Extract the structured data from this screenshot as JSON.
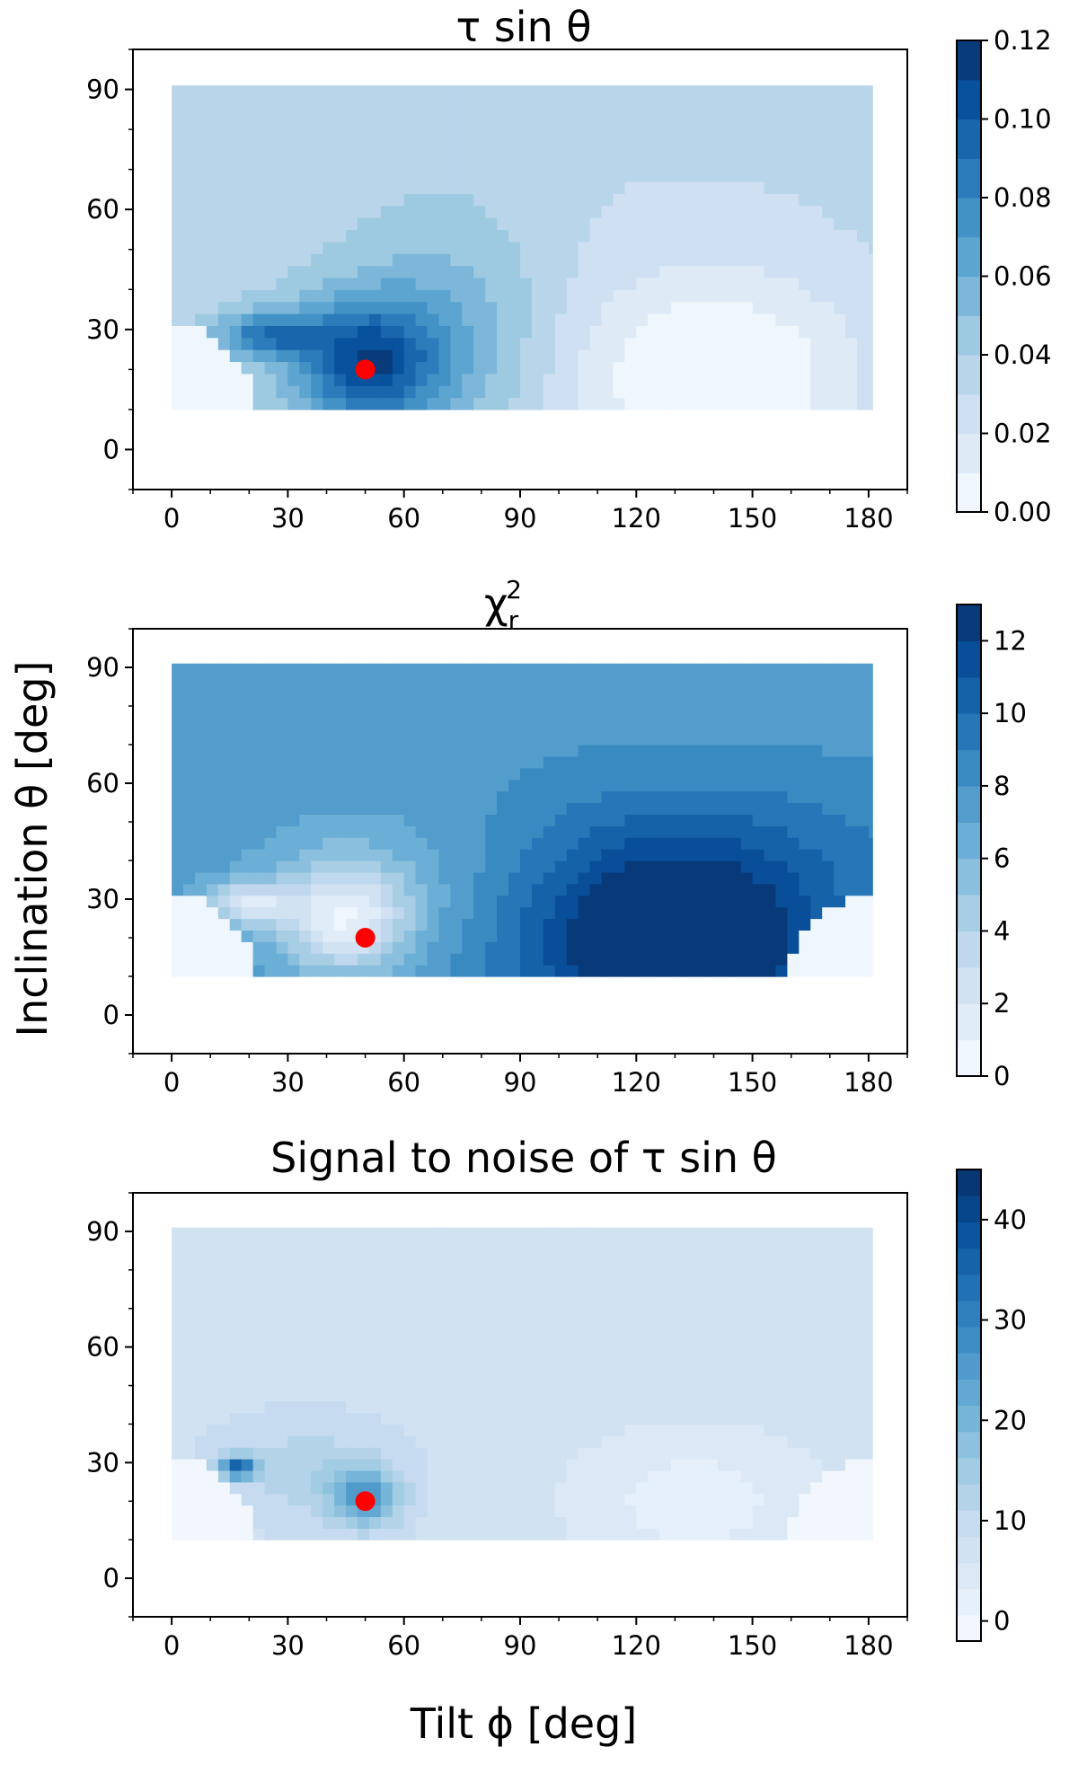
{
  "figure": {
    "xlabel": "Tilt ϕ [deg]",
    "ylabel": "Inclination θ [deg]"
  },
  "chart_data": [
    {
      "type": "heatmap",
      "title": "τ sin θ",
      "x_ticks": [
        "0",
        "30",
        "60",
        "90",
        "120",
        "150",
        "180"
      ],
      "y_ticks": [
        "0",
        "30",
        "60",
        "90"
      ],
      "xlim": [
        -10,
        190
      ],
      "ylim": [
        -10,
        100
      ],
      "grid_extent": {
        "x": [
          0,
          181
        ],
        "y": [
          10,
          91
        ]
      },
      "colorbar": {
        "min": 0.0,
        "max": 0.12,
        "ticks": [
          "0.00",
          "0.02",
          "0.04",
          "0.06",
          "0.08",
          "0.10",
          "0.12"
        ],
        "levels": 12
      },
      "background_value": 0.0,
      "features": [
        {
          "kind": "base",
          "value": 0.036
        },
        {
          "kind": "blob",
          "x": 50,
          "y": 22,
          "sx": 13,
          "sy": 11,
          "amp": 0.068
        },
        {
          "kind": "blob",
          "x": 25,
          "y": 29,
          "sx": 9,
          "sy": 4,
          "amp": 0.05
        },
        {
          "kind": "blob",
          "x": 72,
          "y": 30,
          "sx": 18,
          "sy": 22,
          "amp": 0.022
        },
        {
          "kind": "blob",
          "x": 140,
          "y": 18,
          "sx": 28,
          "sy": 18,
          "amp": -0.04
        },
        {
          "kind": "blob",
          "x": 130,
          "y": 58,
          "sx": 45,
          "sy": 18,
          "amp": -0.006
        }
      ],
      "cutouts": [
        {
          "x": 0,
          "y": 10,
          "r": 21
        }
      ],
      "marker": {
        "x": 50,
        "y": 20,
        "color": "#ff0000"
      }
    },
    {
      "type": "heatmap",
      "title": "χ²_r",
      "title_base": "χ",
      "title_sup": "2",
      "title_sub": "r",
      "x_ticks": [
        "0",
        "30",
        "60",
        "90",
        "120",
        "150",
        "180"
      ],
      "y_ticks": [
        "0",
        "30",
        "60",
        "90"
      ],
      "xlim": [
        -10,
        190
      ],
      "ylim": [
        -10,
        100
      ],
      "grid_extent": {
        "x": [
          0,
          181
        ],
        "y": [
          10,
          91
        ]
      },
      "colorbar": {
        "min": 0,
        "max": 13,
        "ticks": [
          "0",
          "2",
          "4",
          "6",
          "8",
          "10",
          "12"
        ],
        "levels": 13
      },
      "background_value": 0.4,
      "features": [
        {
          "kind": "base",
          "value": 7.6
        },
        {
          "kind": "blob",
          "x": 130,
          "y": 18,
          "sx": 28,
          "sy": 18,
          "amp": 7
        },
        {
          "kind": "blob",
          "x": 45,
          "y": 25,
          "sx": 12,
          "sy": 10,
          "amp": -6.2
        },
        {
          "kind": "blob",
          "x": 20,
          "y": 29,
          "sx": 8,
          "sy": 4,
          "amp": -5.0
        },
        {
          "kind": "blob",
          "x": 130,
          "y": 45,
          "sx": 55,
          "sy": 15,
          "amp": 1.5
        },
        {
          "kind": "blob",
          "x": 60,
          "y": 40,
          "sx": 30,
          "sy": 15,
          "amp": -1.5
        }
      ],
      "cutouts": [
        {
          "x": 0,
          "y": 10,
          "r": 21
        },
        {
          "x": 181,
          "y": 10,
          "r": 21
        }
      ],
      "marker": {
        "x": 50,
        "y": 20,
        "color": "#ff0000"
      }
    },
    {
      "type": "heatmap",
      "title": "Signal to noise of τ sin θ",
      "x_ticks": [
        "0",
        "30",
        "60",
        "90",
        "120",
        "150",
        "180"
      ],
      "y_ticks": [
        "0",
        "30",
        "60",
        "90"
      ],
      "xlim": [
        -10,
        190
      ],
      "ylim": [
        -10,
        100
      ],
      "grid_extent": {
        "x": [
          0,
          181
        ],
        "y": [
          10,
          91
        ]
      },
      "colorbar": {
        "min": -2,
        "max": 45,
        "ticks": [
          "0",
          "10",
          "20",
          "30",
          "40"
        ],
        "levels": 18
      },
      "background_value": -2,
      "features": [
        {
          "kind": "base",
          "value": 8
        },
        {
          "kind": "blob",
          "x": 50,
          "y": 21,
          "sx": 6,
          "sy": 5,
          "amp": 18
        },
        {
          "kind": "blob",
          "x": 17,
          "y": 29,
          "sx": 3,
          "sy": 2,
          "amp": 28
        },
        {
          "kind": "blob",
          "x": 35,
          "y": 28,
          "sx": 14,
          "sy": 8,
          "amp": 5
        },
        {
          "kind": "blob",
          "x": 135,
          "y": 20,
          "sx": 25,
          "sy": 15,
          "amp": -6
        }
      ],
      "cutouts": [
        {
          "x": 0,
          "y": 10,
          "r": 21
        },
        {
          "x": 181,
          "y": 10,
          "r": 21
        }
      ],
      "marker": {
        "x": 50,
        "y": 20,
        "color": "#ff0000"
      }
    }
  ],
  "colormap": {
    "name": "Blues",
    "stops": [
      "#f7fbff",
      "#deebf7",
      "#c6dbef",
      "#9ecae1",
      "#6baed6",
      "#4292c6",
      "#2171b5",
      "#08519c",
      "#08306b"
    ]
  }
}
